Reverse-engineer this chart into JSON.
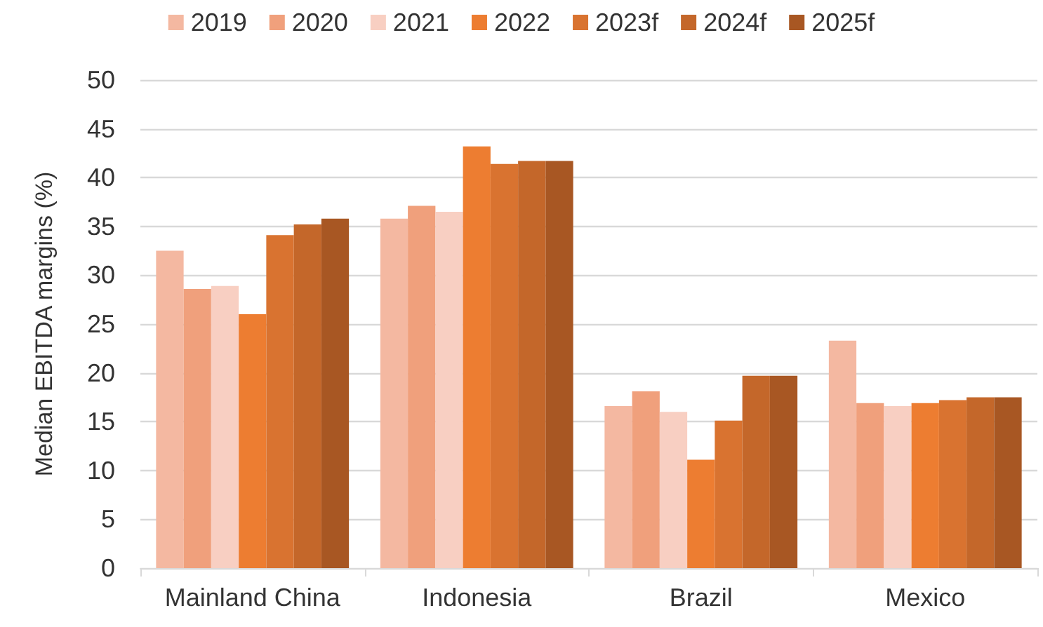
{
  "chart_data": {
    "type": "bar",
    "ylabel": "Median EBITDA margins (%)",
    "categories": [
      "Mainland China",
      "Indonesia",
      "Brazil",
      "Mexico"
    ],
    "series": [
      {
        "name": "2019",
        "color": "#f4b8a1",
        "values": [
          32.5,
          35.8,
          16.6,
          23.3
        ]
      },
      {
        "name": "2020",
        "color": "#f0a07c",
        "values": [
          28.6,
          37.1,
          18.1,
          16.9
        ]
      },
      {
        "name": "2021",
        "color": "#f8cfc2",
        "values": [
          28.9,
          36.5,
          16.0,
          16.6
        ]
      },
      {
        "name": "2022",
        "color": "#ed7d31",
        "values": [
          26.0,
          43.2,
          11.1,
          16.9
        ]
      },
      {
        "name": "2023f",
        "color": "#d97330",
        "values": [
          34.1,
          41.4,
          15.1,
          17.2
        ]
      },
      {
        "name": "2024f",
        "color": "#c4672a",
        "values": [
          35.2,
          41.7,
          19.7,
          17.5
        ]
      },
      {
        "name": "2025f",
        "color": "#a85723",
        "values": [
          35.8,
          41.7,
          19.7,
          17.5
        ]
      }
    ],
    "ylim": [
      0,
      50
    ],
    "yticks": [
      0,
      5,
      10,
      15,
      20,
      25,
      30,
      35,
      40,
      45,
      50
    ],
    "grid": "y",
    "legend": "top"
  }
}
